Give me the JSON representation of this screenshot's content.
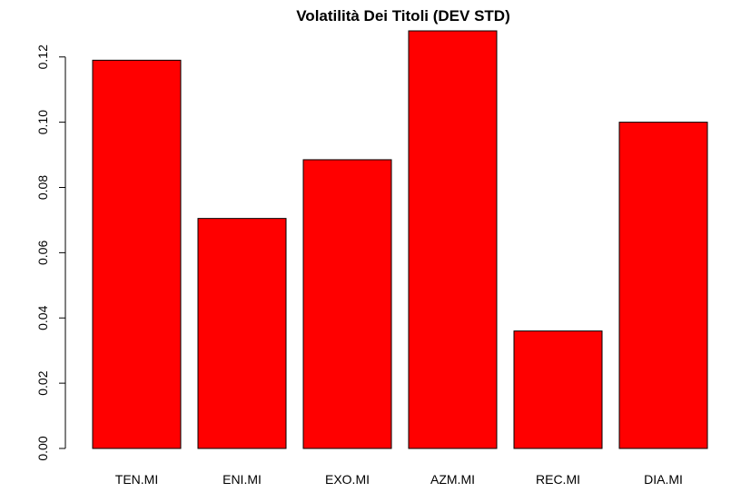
{
  "chart_data": {
    "type": "bar",
    "title": "Volatilità Dei Titoli (DEV STD)",
    "xlabel": "",
    "ylabel": "",
    "categories": [
      "TEN.MI",
      "ENI.MI",
      "EXO.MI",
      "AZM.MI",
      "REC.MI",
      "DIA.MI"
    ],
    "values": [
      0.119,
      0.0705,
      0.0885,
      0.128,
      0.036,
      0.1
    ],
    "ylim": [
      0,
      0.128
    ],
    "yticks": [
      "0.00",
      "0.02",
      "0.04",
      "0.06",
      "0.08",
      "0.10",
      "0.12"
    ],
    "bar_color": "#ff0000",
    "border_color": "#000000",
    "grid": false,
    "legend": "none"
  }
}
